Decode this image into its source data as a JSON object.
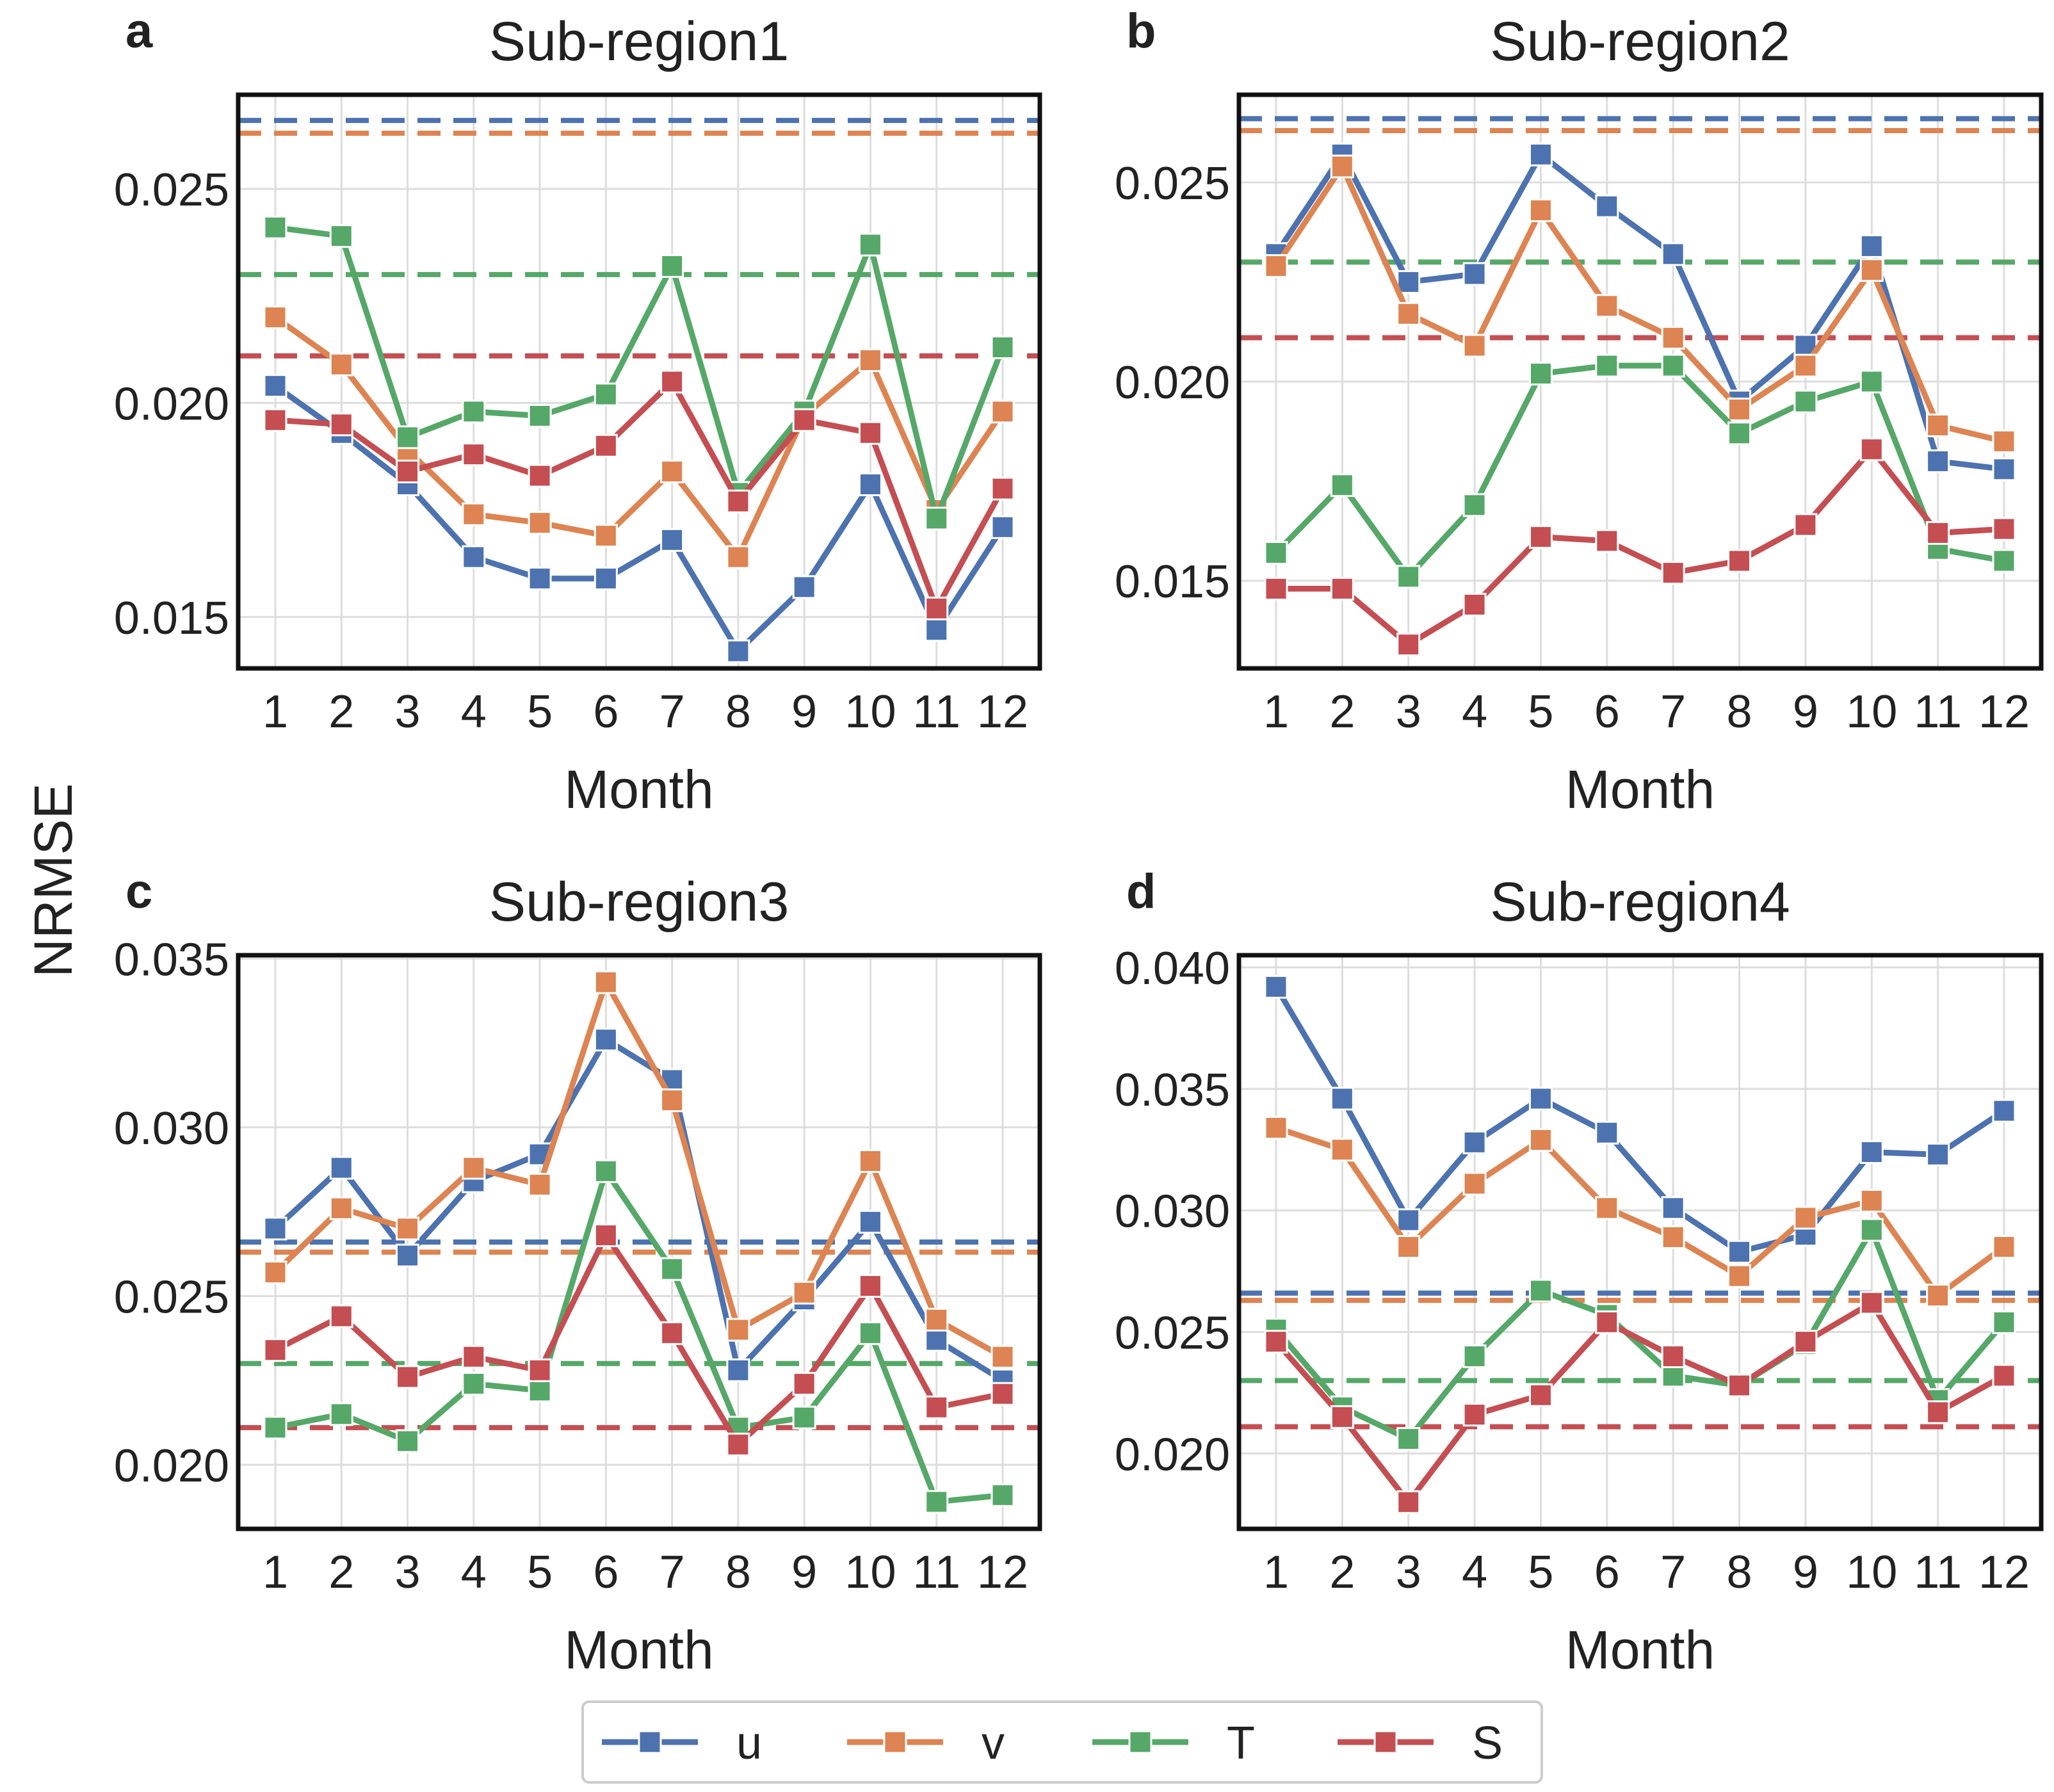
{
  "figure": {
    "ylabel": "NRMSE",
    "series_colors": {
      "u": "#4C72B0",
      "v": "#DD8452",
      "T": "#55A868",
      "S": "#C44E52"
    }
  },
  "legend": {
    "entries": [
      {
        "key": "u",
        "label": "u"
      },
      {
        "key": "v",
        "label": "v"
      },
      {
        "key": "T",
        "label": "T"
      },
      {
        "key": "S",
        "label": "S"
      }
    ]
  },
  "chart_data": [
    {
      "type": "line",
      "letter": "a",
      "title": "Sub-region1",
      "xlabel": "Month",
      "ylabel": "NRMSE",
      "categories": [
        "1",
        "2",
        "3",
        "4",
        "5",
        "6",
        "7",
        "8",
        "9",
        "10",
        "11",
        "12"
      ],
      "ylim": [
        0.0138,
        0.0272
      ],
      "yticks": [
        0.015,
        0.02,
        0.025
      ],
      "ytick_labels": [
        "0.015",
        "0.020",
        "0.025"
      ],
      "grid": true,
      "series": [
        {
          "name": "u",
          "values": [
            0.0204,
            0.0193,
            0.0181,
            0.0164,
            0.0159,
            0.0159,
            0.0168,
            0.0142,
            0.0157,
            0.0181,
            0.0147,
            0.0171
          ]
        },
        {
          "name": "v",
          "values": [
            0.022,
            0.0209,
            0.0189,
            0.0174,
            0.0172,
            0.0169,
            0.0184,
            0.0164,
            0.0197,
            0.021,
            0.0175,
            0.0198
          ]
        },
        {
          "name": "T",
          "values": [
            0.0241,
            0.0239,
            0.0192,
            0.0198,
            0.0197,
            0.0202,
            0.0232,
            0.0179,
            0.0198,
            0.0237,
            0.0173,
            0.0213
          ]
        },
        {
          "name": "S",
          "values": [
            0.0196,
            0.0195,
            0.0184,
            0.0188,
            0.0183,
            0.019,
            0.0205,
            0.0177,
            0.0196,
            0.0193,
            0.0152,
            0.018
          ]
        }
      ],
      "baselines": [
        {
          "name": "u",
          "value": 0.0266
        },
        {
          "name": "v",
          "value": 0.0263
        },
        {
          "name": "T",
          "value": 0.023
        },
        {
          "name": "S",
          "value": 0.0211
        }
      ]
    },
    {
      "type": "line",
      "letter": "b",
      "title": "Sub-region2",
      "xlabel": "Month",
      "ylabel": "NRMSE",
      "categories": [
        "1",
        "2",
        "3",
        "4",
        "5",
        "6",
        "7",
        "8",
        "9",
        "10",
        "11",
        "12"
      ],
      "ylim": [
        0.0128,
        0.0272
      ],
      "yticks": [
        0.015,
        0.02,
        0.025
      ],
      "ytick_labels": [
        "0.015",
        "0.020",
        "0.025"
      ],
      "grid": true,
      "series": [
        {
          "name": "u",
          "values": [
            0.0232,
            0.0257,
            0.0225,
            0.0227,
            0.0257,
            0.0244,
            0.0232,
            0.0195,
            0.0209,
            0.0234,
            0.018,
            0.0178
          ]
        },
        {
          "name": "v",
          "values": [
            0.0229,
            0.0254,
            0.0217,
            0.0209,
            0.0243,
            0.0219,
            0.0211,
            0.0193,
            0.0204,
            0.0228,
            0.0189,
            0.0185
          ]
        },
        {
          "name": "T",
          "values": [
            0.0157,
            0.0174,
            0.0151,
            0.0169,
            0.0202,
            0.0204,
            0.0204,
            0.0187,
            0.0195,
            0.02,
            0.0158,
            0.0155
          ]
        },
        {
          "name": "S",
          "values": [
            0.0148,
            0.0148,
            0.0134,
            0.0144,
            0.0161,
            0.016,
            0.0152,
            0.0155,
            0.0164,
            0.0183,
            0.0162,
            0.0163
          ]
        }
      ],
      "baselines": [
        {
          "name": "u",
          "value": 0.0266
        },
        {
          "name": "v",
          "value": 0.0263
        },
        {
          "name": "T",
          "value": 0.023
        },
        {
          "name": "S",
          "value": 0.0211
        }
      ]
    },
    {
      "type": "line",
      "letter": "c",
      "title": "Sub-region3",
      "xlabel": "Month",
      "ylabel": "NRMSE",
      "categories": [
        "1",
        "2",
        "3",
        "4",
        "5",
        "6",
        "7",
        "8",
        "9",
        "10",
        "11",
        "12"
      ],
      "ylim": [
        0.0181,
        0.0351
      ],
      "yticks": [
        0.02,
        0.025,
        0.03,
        0.035
      ],
      "ytick_labels": [
        "0.020",
        "0.025",
        "0.030",
        "0.035"
      ],
      "grid": true,
      "series": [
        {
          "name": "u",
          "values": [
            0.027,
            0.0288,
            0.0262,
            0.0284,
            0.0292,
            0.0326,
            0.0314,
            0.0228,
            0.0249,
            0.0272,
            0.0237,
            0.0225
          ]
        },
        {
          "name": "v",
          "values": [
            0.0257,
            0.0276,
            0.027,
            0.0288,
            0.0283,
            0.0343,
            0.0308,
            0.024,
            0.0251,
            0.029,
            0.0243,
            0.0232
          ]
        },
        {
          "name": "T",
          "values": [
            0.0211,
            0.0215,
            0.0207,
            0.0224,
            0.0222,
            0.0287,
            0.0258,
            0.0211,
            0.0214,
            0.0239,
            0.0189,
            0.0191
          ]
        },
        {
          "name": "S",
          "values": [
            0.0234,
            0.0244,
            0.0226,
            0.0232,
            0.0228,
            0.0268,
            0.0239,
            0.0206,
            0.0224,
            0.0253,
            0.0217,
            0.0221
          ]
        }
      ],
      "baselines": [
        {
          "name": "u",
          "value": 0.0266
        },
        {
          "name": "v",
          "value": 0.0263
        },
        {
          "name": "T",
          "value": 0.023
        },
        {
          "name": "S",
          "value": 0.0211
        }
      ]
    },
    {
      "type": "line",
      "letter": "d",
      "title": "Sub-region4",
      "xlabel": "Month",
      "ylabel": "NRMSE",
      "categories": [
        "1",
        "2",
        "3",
        "4",
        "5",
        "6",
        "7",
        "8",
        "9",
        "10",
        "11",
        "12"
      ],
      "ylim": [
        0.0169,
        0.0405
      ],
      "yticks": [
        0.02,
        0.025,
        0.03,
        0.035,
        0.04
      ],
      "ytick_labels": [
        "0.020",
        "0.025",
        "0.030",
        "0.035",
        "0.040"
      ],
      "grid": true,
      "series": [
        {
          "name": "u",
          "values": [
            0.0392,
            0.0346,
            0.0296,
            0.0328,
            0.0346,
            0.0332,
            0.0301,
            0.0283,
            0.029,
            0.0324,
            0.0323,
            0.0341
          ]
        },
        {
          "name": "v",
          "values": [
            0.0334,
            0.0325,
            0.0285,
            0.0311,
            0.0329,
            0.0301,
            0.0289,
            0.0273,
            0.0297,
            0.0304,
            0.0265,
            0.0285
          ]
        },
        {
          "name": "T",
          "values": [
            0.0251,
            0.0219,
            0.0206,
            0.024,
            0.0267,
            0.0257,
            0.0232,
            0.0228,
            0.0245,
            0.0292,
            0.0222,
            0.0254
          ]
        },
        {
          "name": "S",
          "values": [
            0.0246,
            0.0215,
            0.018,
            0.0216,
            0.0224,
            0.0254,
            0.024,
            0.0228,
            0.0246,
            0.0262,
            0.0217,
            0.0232
          ]
        }
      ],
      "baselines": [
        {
          "name": "u",
          "value": 0.0266
        },
        {
          "name": "v",
          "value": 0.0263
        },
        {
          "name": "T",
          "value": 0.023
        },
        {
          "name": "S",
          "value": 0.0211
        }
      ]
    }
  ]
}
